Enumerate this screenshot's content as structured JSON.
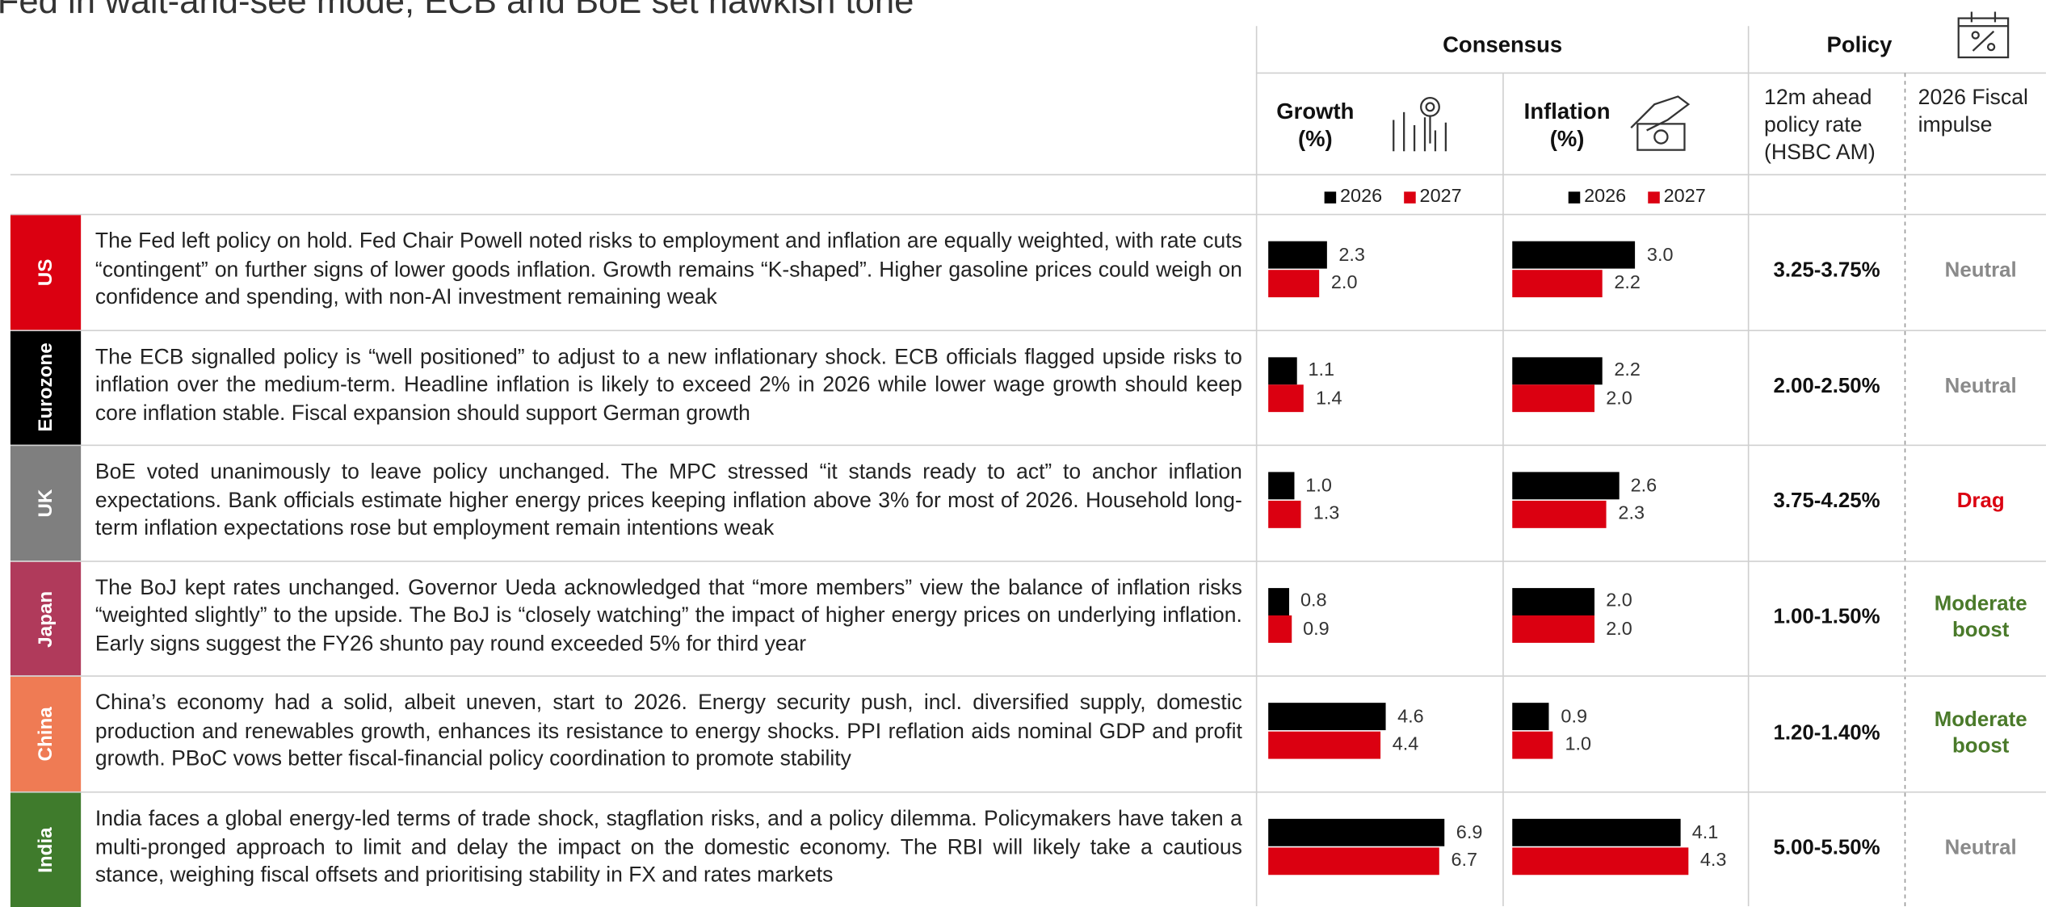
{
  "title": "Fed in wait-and-see mode, ECB and BoE set hawkish tone",
  "header": {
    "consensus": "Consensus",
    "policy": "Policy",
    "growth": "Growth (%)",
    "inflation": "Inflation (%)",
    "policy_rate": "12m ahead policy rate (HSBC AM)",
    "fiscal_impulse": "2026 Fiscal impulse"
  },
  "legend": [
    {
      "name": "2026",
      "color": "#000000"
    },
    {
      "name": "2027",
      "color": "#db0011"
    }
  ],
  "rows": [
    {
      "region": "US",
      "color": "#db0011",
      "text": "The Fed left policy on hold. Fed Chair Powell noted risks to employment and inflation are equally weighted, with rate cuts “contingent” on further signs of lower goods inflation. Growth remains “K-shaped”. Higher gasoline prices could weigh on confidence and spending, with non-AI investment remaining weak",
      "growth": {
        "values": [
          2.3,
          2.0
        ],
        "value_labels": [
          "2.3",
          "2.0"
        ]
      },
      "inflation": {
        "values": [
          3.0,
          2.2
        ],
        "value_labels": [
          "3.0",
          "2.2"
        ]
      },
      "policy_rate": "3.25-3.75%",
      "fiscal_impulse": "Neutral",
      "fiscal_color": "#8a8a8a"
    },
    {
      "region": "Eurozone",
      "color": "#000000",
      "text": "The ECB signalled policy is “well positioned” to adjust to a new inflationary shock. ECB officials flagged upside risks to inflation over the medium-term. Headline inflation is likely to exceed 2% in 2026 while lower wage growth should keep core inflation stable. Fiscal expansion should support German growth",
      "growth": {
        "values": [
          1.1,
          1.4
        ],
        "value_labels": [
          "1.1",
          "1.4"
        ]
      },
      "inflation": {
        "values": [
          2.2,
          2.0
        ],
        "value_labels": [
          "2.2",
          "2.0"
        ]
      },
      "policy_rate": "2.00-2.50%",
      "fiscal_impulse": "Neutral",
      "fiscal_color": "#8a8a8a"
    },
    {
      "region": "UK",
      "color": "#7f7f7f",
      "text": "BoE voted unanimously to leave policy unchanged. The MPC stressed “it stands ready to act” to anchor inflation expectations. Bank officials estimate higher energy prices keeping inflation above 3% for most of 2026. Household long-term inflation expectations rose but employment remain intentions weak",
      "growth": {
        "values": [
          1.0,
          1.3
        ],
        "value_labels": [
          "1.0",
          "1.3"
        ]
      },
      "inflation": {
        "values": [
          2.6,
          2.3
        ],
        "value_labels": [
          "2.6",
          "2.3"
        ]
      },
      "policy_rate": "3.75-4.25%",
      "fiscal_impulse": "Drag",
      "fiscal_color": "#db0011"
    },
    {
      "region": "Japan",
      "color": "#b03a5b",
      "text": "The BoJ kept rates unchanged. Governor Ueda acknowledged that “more members” view the balance of inflation risks “weighted slightly” to the upside. The BoJ is “closely watching” the impact of higher energy prices on underlying inflation. Early signs suggest the FY26 shunto pay round exceeded 5% for third year",
      "growth": {
        "values": [
          0.8,
          0.9
        ],
        "value_labels": [
          "0.8",
          "0.9"
        ]
      },
      "inflation": {
        "values": [
          2.0,
          2.0
        ],
        "value_labels": [
          "2.0",
          "2.0"
        ]
      },
      "policy_rate": "1.00-1.50%",
      "fiscal_impulse": "Moderate boost",
      "fiscal_color": "#4a7a2a"
    },
    {
      "region": "China",
      "color": "#ef7b54",
      "text": "China’s economy had a solid, albeit uneven, start to 2026. Energy security push, incl. diversified supply, domestic production and renewables growth, enhances its resistance to energy shocks. PPI reflation aids nominal GDP and profit growth. PBoC vows better fiscal-financial policy coordination to promote stability",
      "growth": {
        "values": [
          4.6,
          4.4
        ],
        "value_labels": [
          "4.6",
          "4.4"
        ]
      },
      "inflation": {
        "values": [
          0.9,
          1.0
        ],
        "value_labels": [
          "0.9",
          "1.0"
        ]
      },
      "policy_rate": "1.20-1.40%",
      "fiscal_impulse": "Moderate boost",
      "fiscal_color": "#4a7a2a"
    },
    {
      "region": "India",
      "color": "#3f7b2c",
      "text": "India faces a global energy-led terms of trade shock, stagflation risks, and a policy dilemma. Policymakers have taken a multi-pronged approach to limit and delay the impact on the domestic economy. The RBI will likely take a cautious stance, weighing fiscal offsets and prioritising stability in FX and rates markets",
      "growth": {
        "values": [
          6.9,
          6.7
        ],
        "value_labels": [
          "6.9",
          "6.7"
        ]
      },
      "inflation": {
        "values": [
          4.1,
          4.3
        ],
        "value_labels": [
          "4.1",
          "4.3"
        ]
      },
      "policy_rate": "5.00-5.50%",
      "fiscal_impulse": "Neutral",
      "fiscal_color": "#8a8a8a"
    }
  ]
}
